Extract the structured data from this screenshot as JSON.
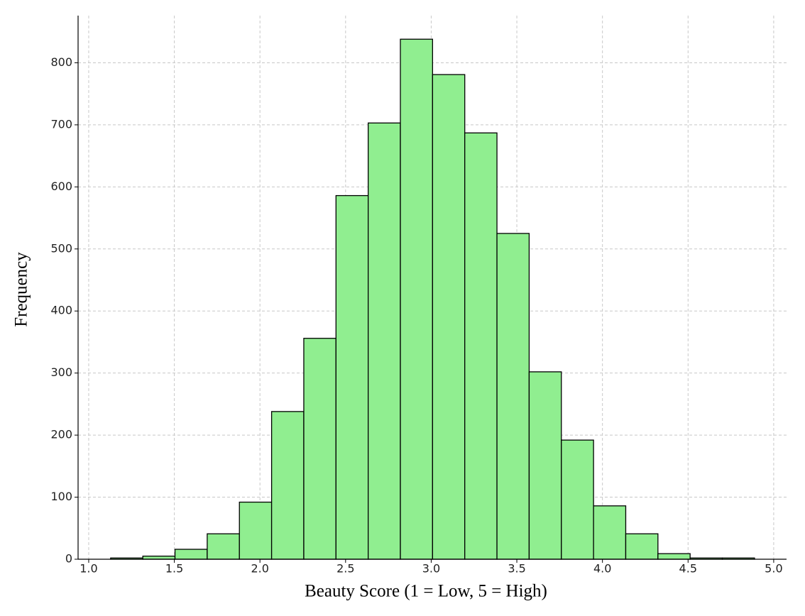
{
  "chart_data": {
    "type": "histogram",
    "x_label": "Beauty Score (1 = Low, 5 = High)",
    "y_label": "Frequency",
    "bins": [
      1.128,
      1.316,
      1.504,
      1.692,
      1.88,
      2.068,
      2.256,
      2.444,
      2.632,
      2.82,
      3.008,
      3.196,
      3.384,
      3.572,
      3.76,
      3.948,
      4.136,
      4.324,
      4.512,
      4.7,
      4.888
    ],
    "values": [
      2,
      5,
      16,
      41,
      92,
      238,
      356,
      586,
      703,
      838,
      781,
      687,
      525,
      302,
      192,
      86,
      41,
      9,
      2,
      2
    ],
    "color": "#90ee90",
    "edgecolor": "#000000",
    "xlim": [
      0.938,
      5.075
    ],
    "ylim": [
      0,
      876
    ],
    "xticks": [
      {
        "value": 1.0,
        "label": "1.0"
      },
      1.5,
      {
        "value": 2.0,
        "label": "2.0"
      },
      2.5,
      {
        "value": 3.0,
        "label": "3.0"
      },
      3.5,
      {
        "value": 4.0,
        "label": "4.0"
      },
      4.5,
      {
        "value": 5.0,
        "label": "5.0"
      }
    ],
    "yticks": [
      0,
      100,
      200,
      300,
      400,
      500,
      600,
      700,
      800
    ],
    "grid": true
  }
}
